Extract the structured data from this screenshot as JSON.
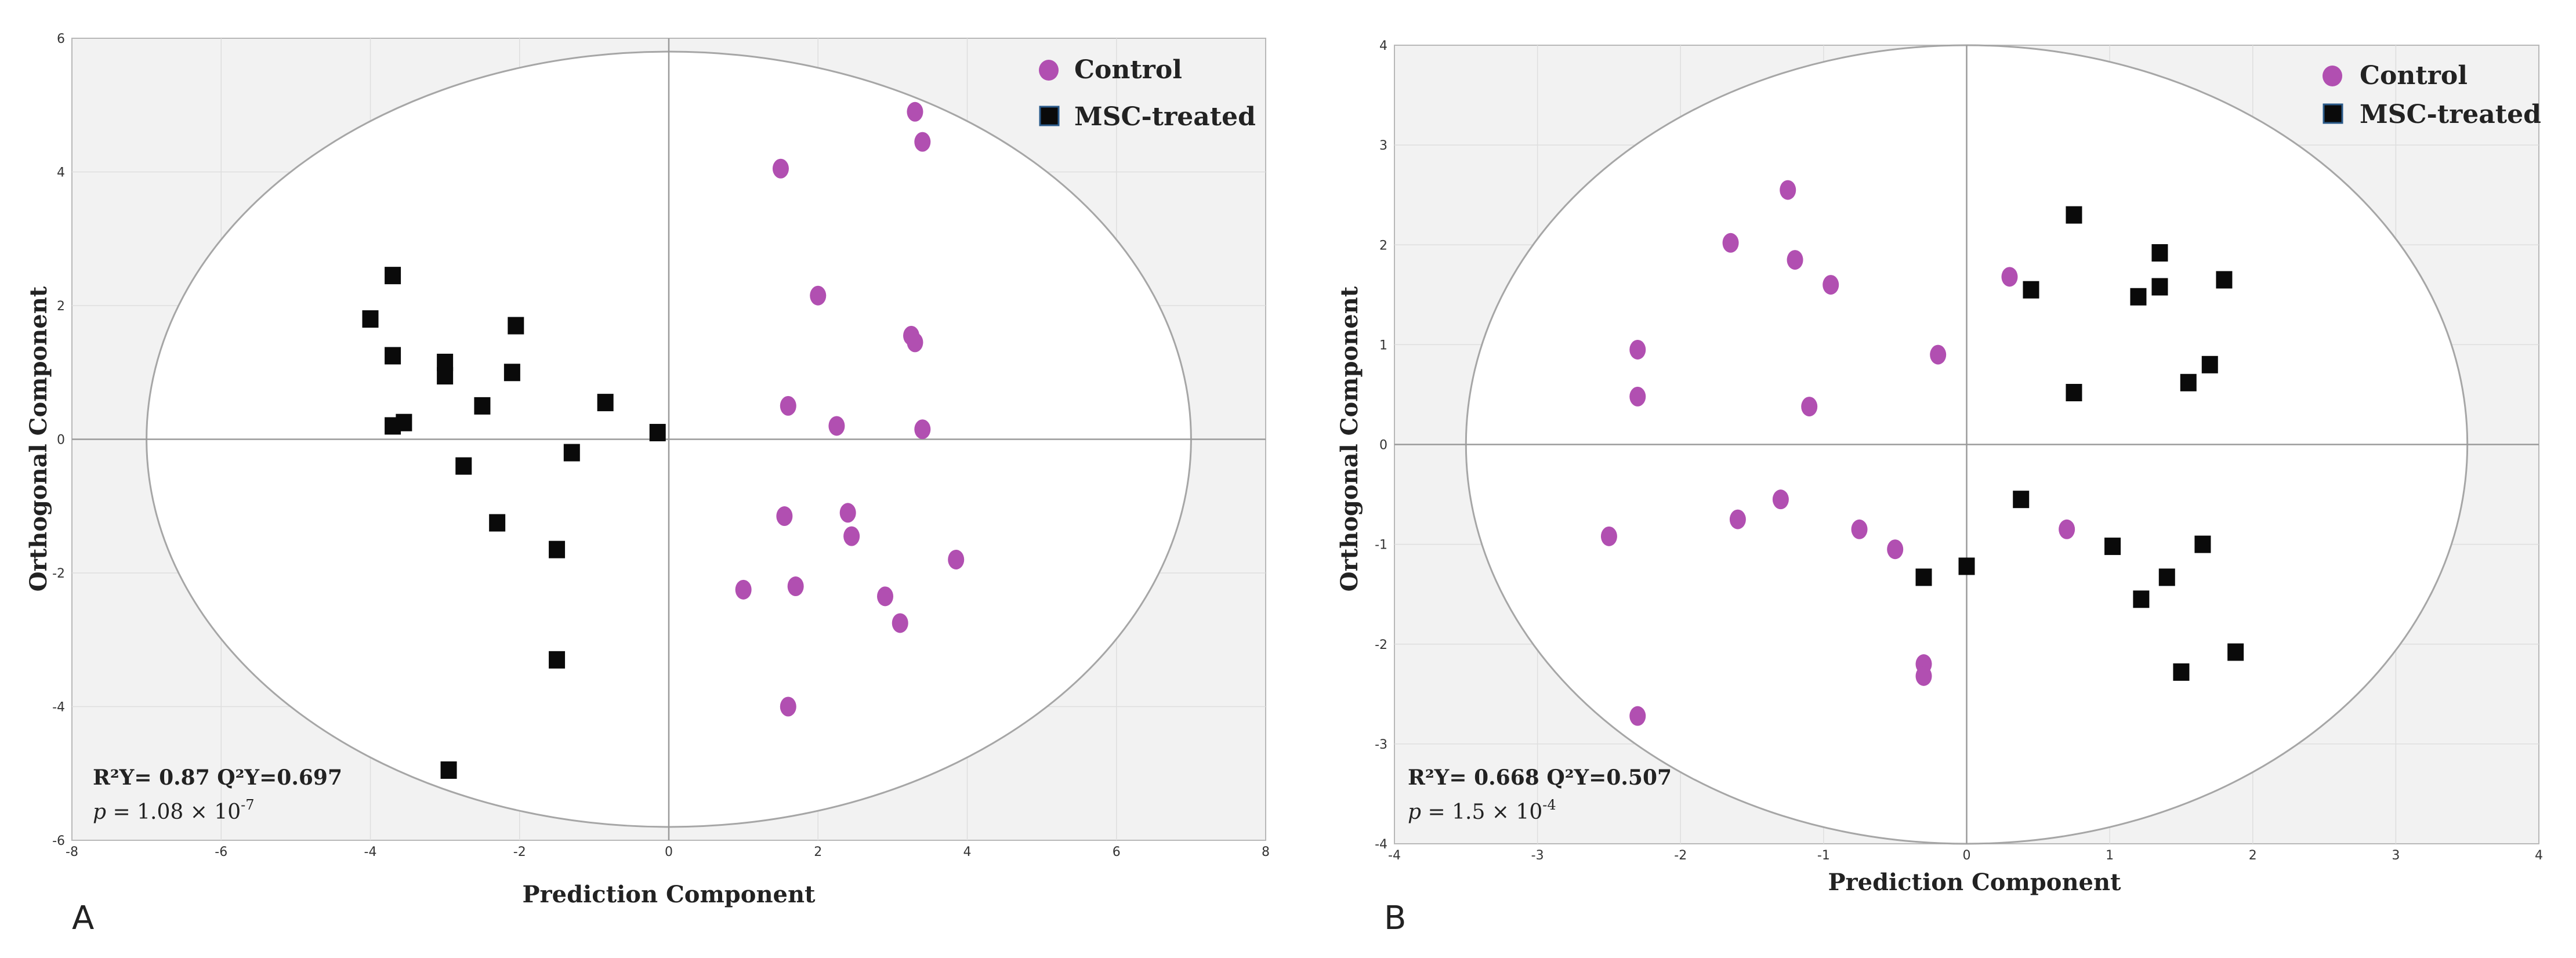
{
  "chart_data": [
    {
      "panel": "A",
      "type": "scatter",
      "title": "",
      "xlabel": "Prediction Component",
      "ylabel": "Orthogonal Component",
      "xlim": [
        -8,
        8
      ],
      "ylim": [
        -6,
        6
      ],
      "xticks": [
        -8,
        -6,
        -4,
        -2,
        0,
        2,
        4,
        6,
        8
      ],
      "yticks": [
        -6,
        -4,
        -2,
        0,
        2,
        4,
        6
      ],
      "grid": true,
      "legend_position": "top-right",
      "ellipse": {
        "center": [
          0,
          0
        ],
        "radius_x": 7.0,
        "radius_y": 5.8
      },
      "series": [
        {
          "name": "Control",
          "marker": "ellipse",
          "color": "#b14fb1",
          "points": [
            [
              3.3,
              4.9
            ],
            [
              3.4,
              4.45
            ],
            [
              1.5,
              4.05
            ],
            [
              2.0,
              2.15
            ],
            [
              3.25,
              1.55
            ],
            [
              3.3,
              1.45
            ],
            [
              1.6,
              0.5
            ],
            [
              2.25,
              0.2
            ],
            [
              3.4,
              0.15
            ],
            [
              1.55,
              -1.15
            ],
            [
              2.4,
              -1.1
            ],
            [
              2.45,
              -1.45
            ],
            [
              3.85,
              -1.8
            ],
            [
              1.0,
              -2.25
            ],
            [
              1.7,
              -2.2
            ],
            [
              2.9,
              -2.35
            ],
            [
              3.1,
              -2.75
            ],
            [
              1.6,
              -4.0
            ]
          ]
        },
        {
          "name": "MSC-treated",
          "marker": "square",
          "color": "#0a0a0a",
          "points": [
            [
              -3.7,
              2.45
            ],
            [
              -4.0,
              1.8
            ],
            [
              -3.7,
              1.25
            ],
            [
              -3.0,
              1.15
            ],
            [
              -2.05,
              1.7
            ],
            [
              -3.0,
              0.95
            ],
            [
              -2.1,
              1.0
            ],
            [
              -2.5,
              0.5
            ],
            [
              -0.85,
              0.55
            ],
            [
              -3.7,
              0.2
            ],
            [
              -3.55,
              0.25
            ],
            [
              -0.15,
              0.1
            ],
            [
              -1.3,
              -0.2
            ],
            [
              -2.75,
              -0.4
            ],
            [
              -2.3,
              -1.25
            ],
            [
              -1.5,
              -1.65
            ],
            [
              -1.5,
              -3.3
            ],
            [
              -2.95,
              -4.95
            ]
          ]
        }
      ],
      "annotations": {
        "stats": "R²Y= 0.87 Q²Y=0.697",
        "p_prefix": "p",
        "p_value": "= 1.08 × 10",
        "p_exponent": "-7"
      }
    },
    {
      "panel": "B",
      "type": "scatter",
      "title": "",
      "xlabel": "Prediction Component",
      "ylabel": "Orthogonal Component",
      "xlim": [
        -4,
        4
      ],
      "ylim": [
        -4,
        4
      ],
      "xticks": [
        -4,
        -3,
        -2,
        -1,
        0,
        1,
        2,
        3,
        4
      ],
      "yticks": [
        -4,
        -3,
        -2,
        -1,
        0,
        1,
        2,
        3,
        4
      ],
      "grid": true,
      "legend_position": "top-right",
      "ellipse": {
        "center": [
          0,
          0
        ],
        "radius_x": 3.5,
        "radius_y": 4.0
      },
      "series": [
        {
          "name": "Control",
          "marker": "ellipse",
          "color": "#b14fb1",
          "points": [
            [
              -1.25,
              2.55
            ],
            [
              -1.65,
              2.02
            ],
            [
              -1.2,
              1.85
            ],
            [
              -0.95,
              1.6
            ],
            [
              0.3,
              1.68
            ],
            [
              -2.3,
              0.95
            ],
            [
              -0.2,
              0.9
            ],
            [
              -2.3,
              0.48
            ],
            [
              -1.1,
              0.38
            ],
            [
              -2.5,
              -0.92
            ],
            [
              -1.6,
              -0.75
            ],
            [
              -1.3,
              -0.55
            ],
            [
              -0.75,
              -0.85
            ],
            [
              -0.5,
              -1.05
            ],
            [
              0.7,
              -0.85
            ],
            [
              -0.3,
              -2.2
            ],
            [
              -0.3,
              -2.32
            ],
            [
              -2.3,
              -2.72
            ]
          ]
        },
        {
          "name": "MSC-treated",
          "marker": "square",
          "color": "#0a0a0a",
          "points": [
            [
              0.75,
              2.3
            ],
            [
              1.35,
              1.92
            ],
            [
              1.8,
              1.65
            ],
            [
              1.35,
              1.58
            ],
            [
              0.45,
              1.55
            ],
            [
              1.2,
              1.48
            ],
            [
              1.7,
              0.8
            ],
            [
              1.55,
              0.62
            ],
            [
              0.75,
              0.52
            ],
            [
              0.38,
              -0.55
            ],
            [
              1.02,
              -1.02
            ],
            [
              1.65,
              -1.0
            ],
            [
              0.0,
              -1.22
            ],
            [
              -0.3,
              -1.33
            ],
            [
              1.4,
              -1.33
            ],
            [
              1.22,
              -1.55
            ],
            [
              1.88,
              -2.08
            ],
            [
              1.5,
              -2.28
            ]
          ]
        }
      ],
      "annotations": {
        "stats": "R²Y= 0.668 Q²Y=0.507",
        "p_prefix": "p",
        "p_value": "= 1.5 × 10",
        "p_exponent": "-4"
      }
    }
  ]
}
